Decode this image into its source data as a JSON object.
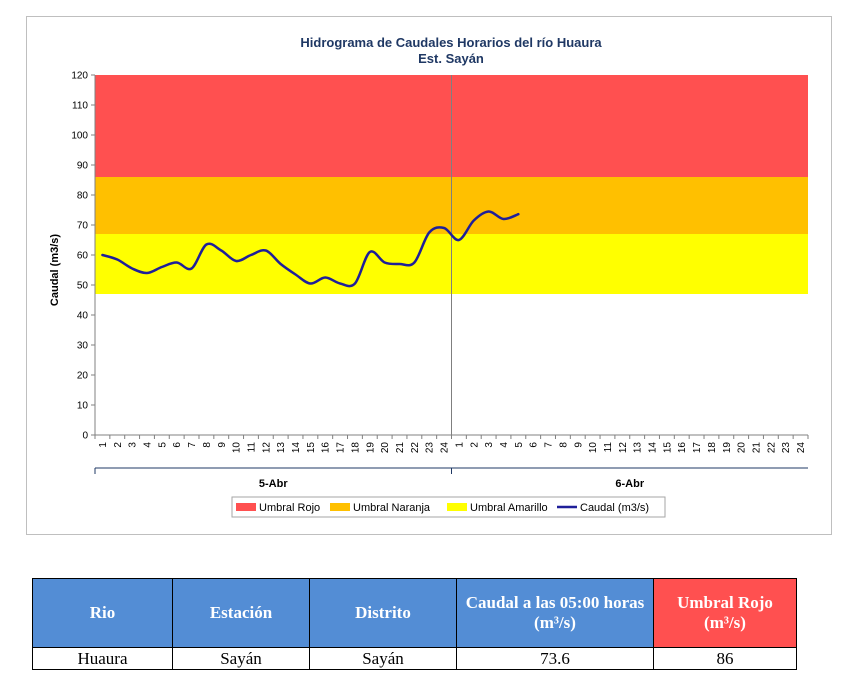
{
  "chart_data": {
    "type": "line",
    "title": "Hidrograma de Caudales Horarios del río Huaura",
    "subtitle": "Est. Sayán",
    "ylabel": "Caudal  (m3/s)",
    "ylim": [
      0,
      120
    ],
    "yticks": [
      0,
      10,
      20,
      30,
      40,
      50,
      60,
      70,
      80,
      90,
      100,
      110,
      120
    ],
    "x_hour_labels": [
      "1",
      "2",
      "3",
      "4",
      "5",
      "6",
      "7",
      "8",
      "9",
      "10",
      "11",
      "12",
      "13",
      "14",
      "15",
      "16",
      "17",
      "18",
      "19",
      "20",
      "21",
      "22",
      "23",
      "24",
      "1",
      "2",
      "3",
      "4",
      "5",
      "6",
      "7",
      "8",
      "9",
      "10",
      "11",
      "12",
      "13",
      "14",
      "15",
      "16",
      "17",
      "18",
      "19",
      "20",
      "21",
      "22",
      "23",
      "24"
    ],
    "day_groups": [
      {
        "label": "5-Abr",
        "start": 1,
        "end": 24
      },
      {
        "label": "6-Abr",
        "start": 25,
        "end": 48
      }
    ],
    "thresholds": [
      {
        "name": "Umbral Rojo",
        "from": 86,
        "to": 120,
        "color": "#ff5050"
      },
      {
        "name": "Umbral Naranja",
        "from": 67,
        "to": 86,
        "color": "#ffc000"
      },
      {
        "name": "Umbral Amarillo",
        "from": 47,
        "to": 67,
        "color": "#ffff00"
      }
    ],
    "series": [
      {
        "name": "Caudal (m3/s)",
        "color": "#1f1f99",
        "x": [
          1,
          2,
          3,
          4,
          5,
          6,
          7,
          8,
          9,
          10,
          11,
          12,
          13,
          14,
          15,
          16,
          17,
          18,
          19,
          20,
          21,
          22,
          23,
          24,
          25,
          26,
          27,
          28,
          29
        ],
        "values": [
          60,
          58.5,
          55.5,
          54,
          56,
          57.5,
          55.5,
          63.5,
          61.5,
          58,
          60,
          61.5,
          57,
          53.5,
          50.5,
          52.5,
          50.5,
          50.5,
          61,
          57.5,
          57,
          57.5,
          67.5,
          69,
          65,
          71.5,
          74.5,
          72,
          73.6
        ]
      }
    ],
    "legend": [
      "Umbral Rojo",
      "Umbral Naranja",
      "Umbral Amarillo",
      "Caudal (m3/s)"
    ],
    "legend_position": "bottom",
    "grid": false
  },
  "table": {
    "headers": [
      "Rio",
      "Estación",
      "Distrito",
      "Caudal a las 05:00 horas (m³/s)",
      "Umbral Rojo (m³/s)"
    ],
    "rows": [
      [
        "Huaura",
        "Sayán",
        "Sayán",
        "73.6",
        "86"
      ]
    ]
  }
}
